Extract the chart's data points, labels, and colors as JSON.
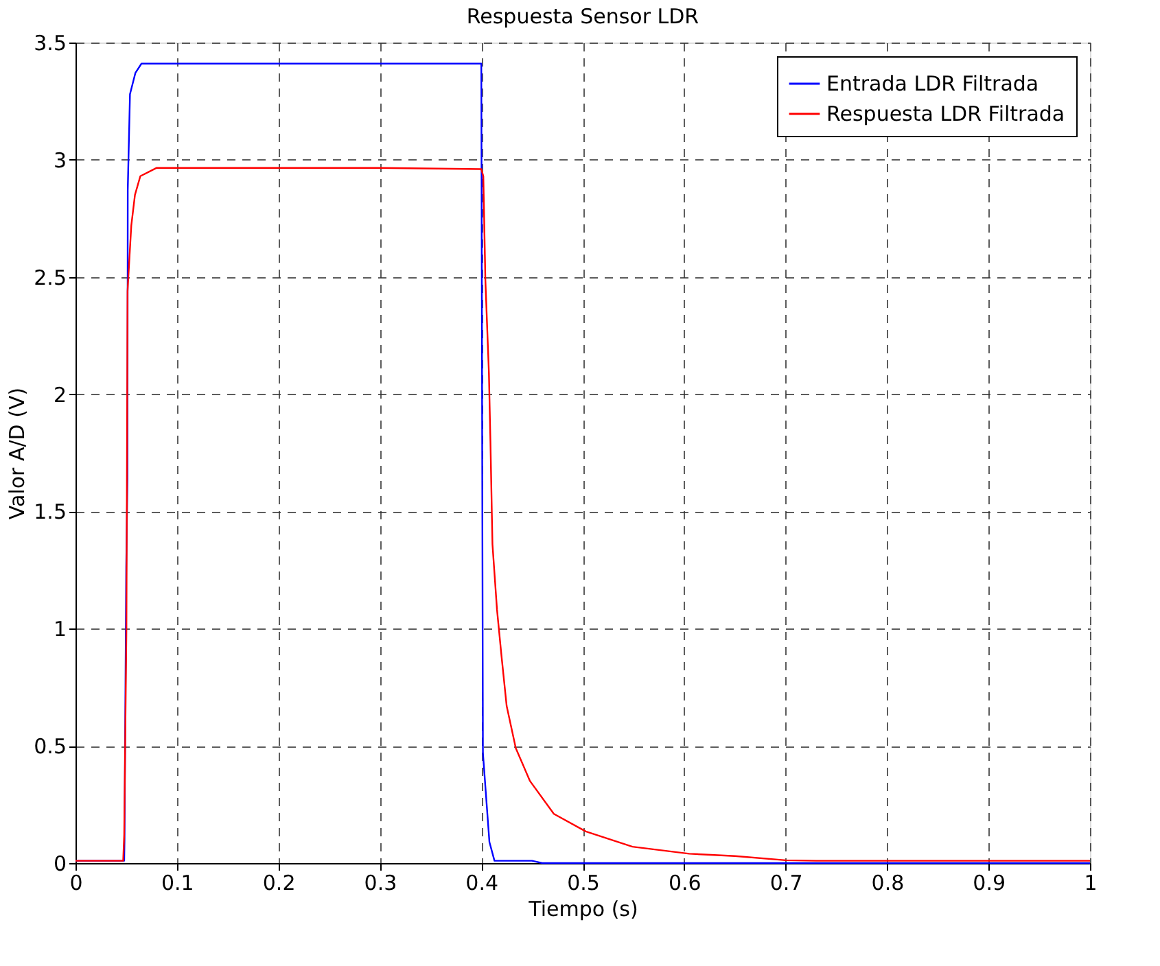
{
  "chart_data": {
    "type": "line",
    "title": "Respuesta Sensor LDR",
    "xlabel": "Tiempo (s)",
    "ylabel": "Valor A/D (V)",
    "xlim": [
      0,
      1
    ],
    "ylim": [
      0,
      3.5
    ],
    "xticks": [
      0,
      0.1,
      0.2,
      0.3,
      0.4,
      0.5,
      0.6,
      0.7,
      0.8,
      0.9,
      1
    ],
    "yticks": [
      0,
      0.5,
      1,
      1.5,
      2,
      2.5,
      3,
      3.5
    ],
    "grid": true,
    "legend": "top right",
    "marker": "none",
    "line_style": "solid",
    "series": [
      {
        "name": "Entrada LDR Filtrada",
        "color": "#0000ff",
        "x": [
          0,
          0.048,
          0.0483,
          0.05,
          0.0512,
          0.0515,
          0.0537,
          0.059,
          0.065,
          0.1,
          0.2,
          0.3,
          0.35,
          0.4,
          0.4016,
          0.408,
          0.413,
          0.45,
          0.46,
          1
        ],
        "values": [
          0.01,
          0.01,
          0.1,
          1.26,
          1.64,
          2.87,
          3.28,
          3.37,
          3.41,
          3.41,
          3.41,
          3.41,
          3.41,
          3.41,
          0.47,
          0.09,
          0.01,
          0.01,
          0,
          0
        ]
      },
      {
        "name": "Respuesta LDR Filtrada",
        "color": "#ff0000",
        "x": [
          0,
          0.047,
          0.048,
          0.0502,
          0.0513,
          0.055,
          0.0586,
          0.0639,
          0.0797,
          0.1,
          0.2,
          0.3,
          0.4,
          0.402,
          0.404,
          0.4075,
          0.409,
          0.411,
          0.4155,
          0.42,
          0.425,
          0.434,
          0.448,
          0.4715,
          0.503,
          0.549,
          0.605,
          0.65,
          0.7,
          0.73,
          1
        ],
        "values": [
          0.01,
          0.01,
          0.12,
          1.0,
          2.44,
          2.72,
          2.85,
          2.93,
          2.965,
          2.965,
          2.965,
          2.965,
          2.96,
          2.93,
          2.49,
          2.09,
          1.8,
          1.36,
          1.08,
          0.88,
          0.67,
          0.49,
          0.35,
          0.21,
          0.135,
          0.07,
          0.04,
          0.03,
          0.012,
          0.01,
          0.01
        ]
      }
    ]
  }
}
